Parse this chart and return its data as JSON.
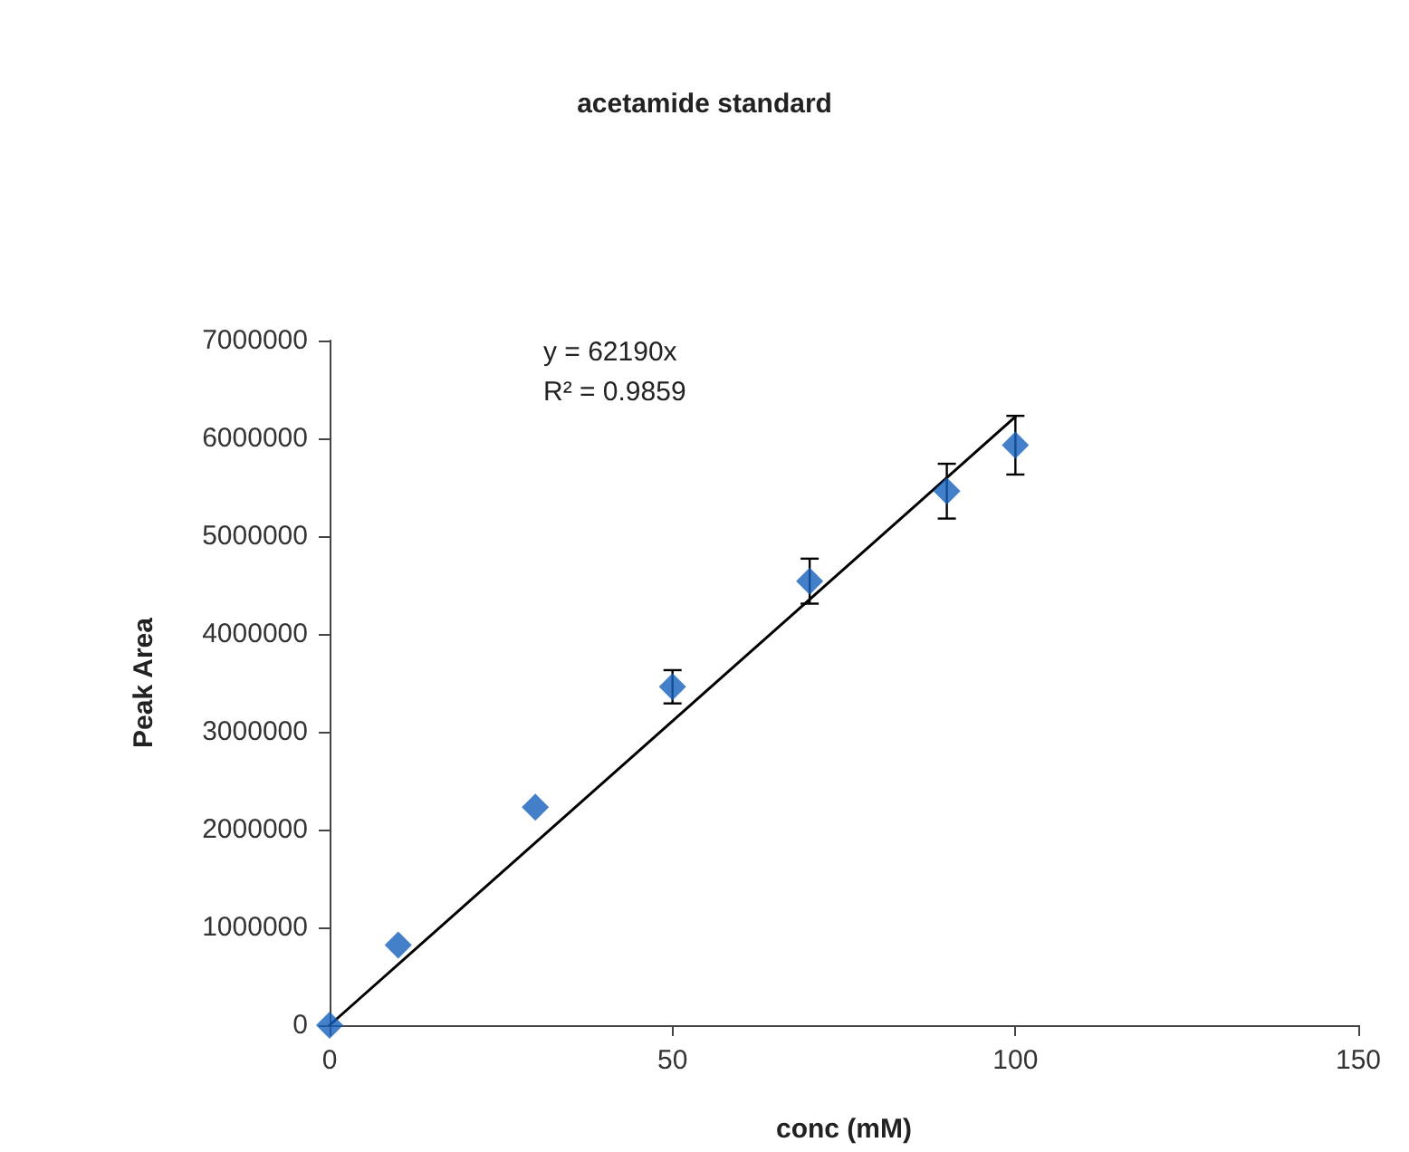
{
  "chart_data": {
    "type": "scatter",
    "title": "acetamide standard",
    "xlabel": "conc (mM)",
    "ylabel": "Peak Area",
    "xlim": [
      0,
      150
    ],
    "xticks": [
      0,
      50,
      100,
      150
    ],
    "ylim": [
      0,
      7000000
    ],
    "yticks": [
      0,
      1000000,
      2000000,
      3000000,
      4000000,
      5000000,
      6000000,
      7000000
    ],
    "grid": false,
    "marker": "diamond",
    "annotations": [
      "y = 62190x",
      "R² = 0.9859"
    ],
    "series": [
      {
        "color": "#1560bd",
        "x": [
          0,
          10,
          30,
          50,
          70,
          90,
          100
        ],
        "values": [
          0,
          820000,
          2230000,
          3460000,
          4540000,
          5460000,
          5930000
        ],
        "errors": [
          null,
          null,
          null,
          170000,
          230000,
          280000,
          300000
        ]
      },
      {
        "type": "line",
        "color": "#000000",
        "line_style": "solid",
        "marker": "none",
        "x": [
          0,
          100
        ],
        "values": [
          0,
          6220000
        ]
      }
    ]
  }
}
